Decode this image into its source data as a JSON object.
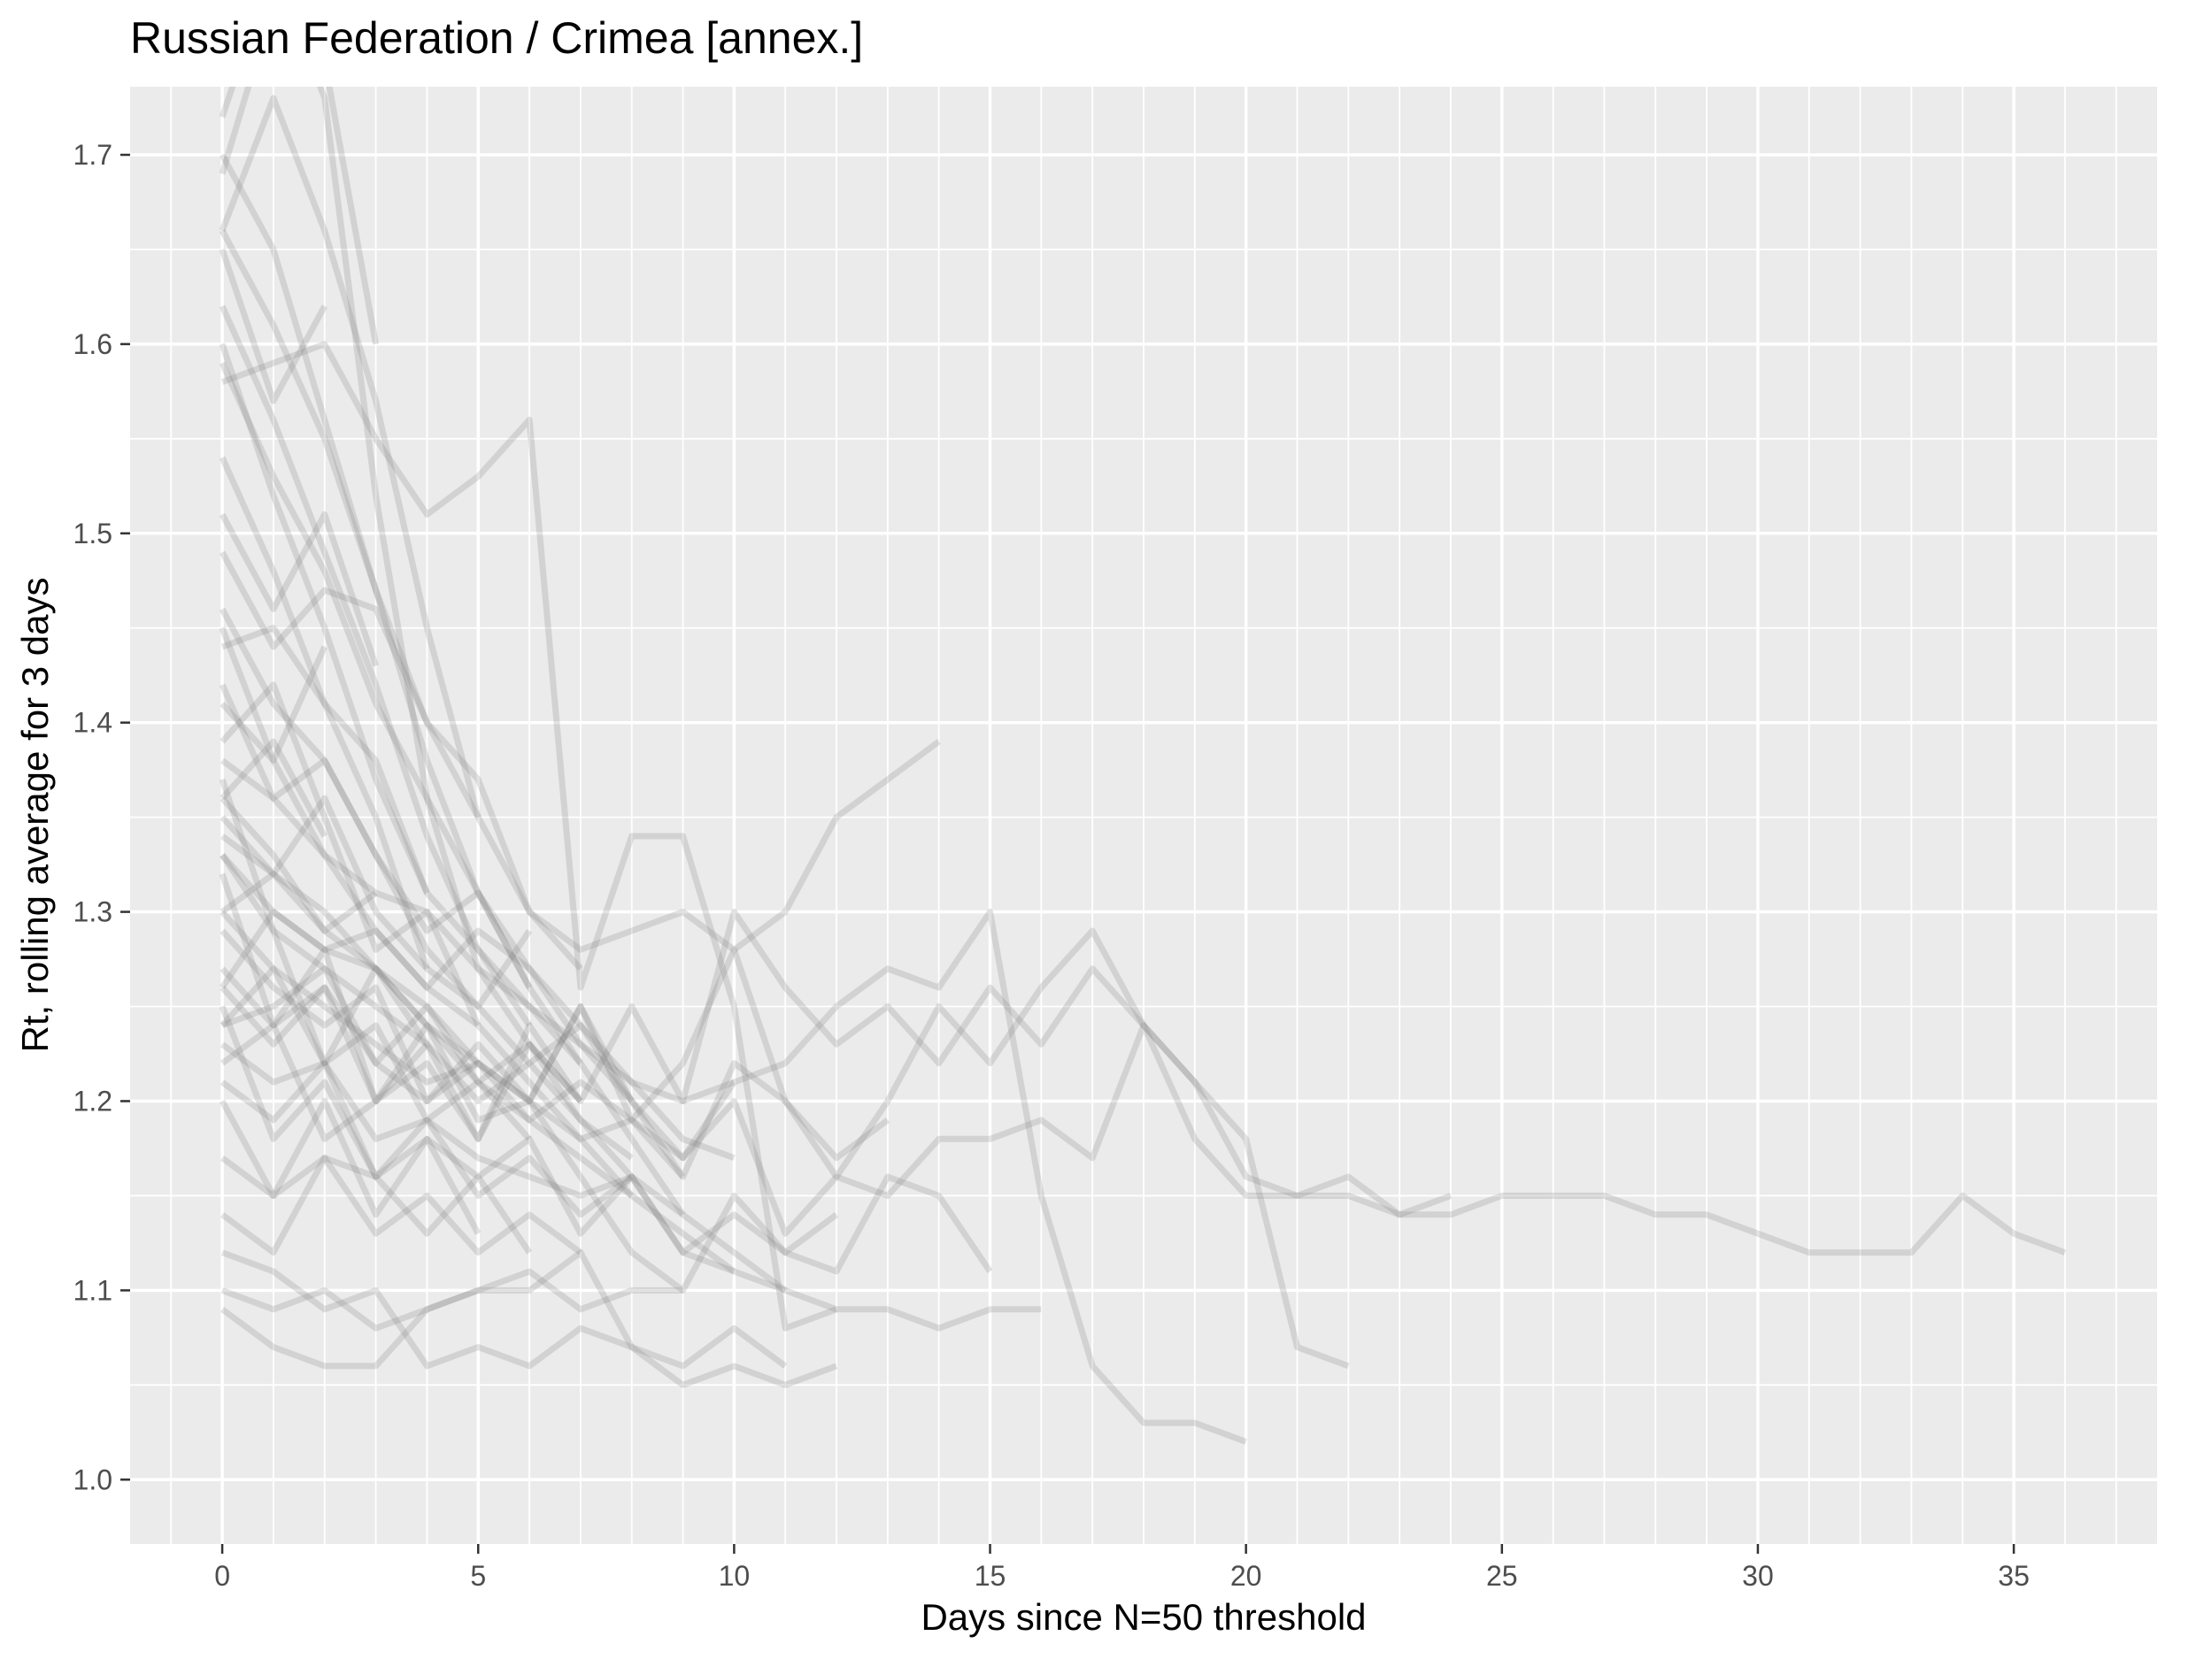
{
  "chart_data": {
    "type": "line",
    "title": "Russian Federation / Crimea [annex.]",
    "xlabel": "Days since N=50 threshold",
    "ylabel": "Rt, rolling average for 3 days",
    "xlim": [
      -1.8,
      37.8
    ],
    "ylim": [
      0.966,
      1.736
    ],
    "x_ticks": [
      0,
      5,
      10,
      15,
      20,
      25,
      30,
      35
    ],
    "x_tick_labels": [
      "0",
      "5",
      "10",
      "15",
      "20",
      "25",
      "30",
      "35"
    ],
    "y_ticks": [
      1.0,
      1.1,
      1.2,
      1.3,
      1.4,
      1.5,
      1.6,
      1.7
    ],
    "y_tick_labels": [
      "1.0",
      "1.1",
      "1.2",
      "1.3",
      "1.4",
      "1.5",
      "1.6",
      "1.7"
    ],
    "grid": true,
    "legend": "none",
    "colors": {
      "panel": "#ebebeb",
      "grid": "#ffffff",
      "line": "#7a7a7a"
    },
    "series": [
      {
        "x": [
          0,
          1,
          2,
          3,
          4,
          5,
          6,
          7,
          8,
          9,
          10,
          11,
          12,
          13,
          14,
          15,
          16,
          17,
          18,
          19,
          20,
          21,
          22,
          23,
          24,
          25,
          26,
          27,
          28,
          29,
          30,
          31,
          32,
          33,
          34,
          35,
          36
        ],
        "y": [
          1.37,
          1.29,
          1.22,
          1.27,
          1.23,
          1.18,
          1.24,
          1.2,
          1.25,
          1.2,
          1.3,
          1.26,
          1.23,
          1.25,
          1.22,
          1.26,
          1.23,
          1.27,
          1.24,
          1.21,
          1.16,
          1.15,
          1.16,
          1.14,
          1.14,
          1.15,
          1.15,
          1.15,
          1.14,
          1.14,
          1.13,
          1.12,
          1.12,
          1.12,
          1.15,
          1.13,
          1.12
        ]
      },
      {
        "x": [
          0,
          1,
          2,
          3,
          4,
          5,
          6,
          7,
          8,
          9,
          10,
          11,
          12,
          13,
          14,
          15,
          16,
          17,
          18,
          19,
          20,
          21,
          22
        ],
        "y": [
          1.24,
          1.25,
          1.27,
          1.22,
          1.2,
          1.23,
          1.2,
          1.25,
          1.2,
          1.16,
          1.22,
          1.2,
          1.16,
          1.2,
          1.25,
          1.22,
          1.26,
          1.29,
          1.24,
          1.21,
          1.18,
          1.07,
          1.06
        ]
      },
      {
        "x": [
          0,
          1,
          2,
          3,
          4,
          5,
          6,
          7,
          8,
          9,
          10,
          11,
          12,
          13,
          14,
          15,
          16,
          17,
          18,
          19,
          20
        ],
        "y": [
          1.33,
          1.29,
          1.27,
          1.25,
          1.23,
          1.2,
          1.22,
          1.24,
          1.2,
          1.17,
          1.21,
          1.22,
          1.25,
          1.27,
          1.26,
          1.3,
          1.15,
          1.06,
          1.03,
          1.03,
          1.02
        ]
      },
      {
        "x": [
          0,
          1,
          2,
          3,
          4,
          5,
          6,
          7,
          8,
          9,
          10,
          11,
          12,
          13,
          14,
          15,
          16,
          17,
          18,
          19,
          20,
          21,
          22,
          23,
          24
        ],
        "y": [
          1.29,
          1.26,
          1.24,
          1.26,
          1.2,
          1.22,
          1.19,
          1.21,
          1.19,
          1.17,
          1.2,
          1.13,
          1.16,
          1.15,
          1.18,
          1.18,
          1.19,
          1.17,
          1.24,
          1.18,
          1.15,
          1.15,
          1.15,
          1.14,
          1.15
        ]
      },
      {
        "x": [
          0,
          1,
          2,
          3,
          4,
          5,
          6,
          7,
          8,
          9,
          10,
          11,
          12,
          13,
          14
        ],
        "y": [
          1.22,
          1.24,
          1.18,
          1.2,
          1.24,
          1.19,
          1.2,
          1.25,
          1.19,
          1.22,
          1.28,
          1.3,
          1.35,
          1.37,
          1.39
        ]
      },
      {
        "x": [
          0,
          1,
          2,
          3,
          4,
          5,
          6,
          7,
          8,
          9,
          10,
          11,
          12,
          13,
          14,
          15,
          16
        ],
        "y": [
          1.45,
          1.38,
          1.33,
          1.29,
          1.26,
          1.24,
          1.21,
          1.18,
          1.15,
          1.13,
          1.11,
          1.1,
          1.09,
          1.09,
          1.08,
          1.09,
          1.09
        ]
      },
      {
        "x": [
          0,
          1,
          2,
          3,
          4,
          5,
          6,
          7,
          8,
          9,
          10,
          11,
          12,
          13,
          14,
          15
        ],
        "y": [
          1.17,
          1.15,
          1.2,
          1.14,
          1.18,
          1.16,
          1.18,
          1.13,
          1.16,
          1.12,
          1.14,
          1.12,
          1.11,
          1.16,
          1.15,
          1.11
        ]
      },
      {
        "x": [
          0,
          1,
          2,
          3,
          4,
          5,
          6,
          7,
          8,
          9,
          10,
          11,
          12,
          13
        ],
        "y": [
          1.66,
          1.61,
          1.55,
          1.47,
          1.4,
          1.35,
          1.3,
          1.28,
          1.29,
          1.3,
          1.28,
          1.2,
          1.17,
          1.19
        ]
      },
      {
        "x": [
          0,
          1,
          2,
          3,
          4,
          5,
          6,
          7,
          8,
          9,
          10,
          11,
          12
        ],
        "y": [
          1.09,
          1.07,
          1.06,
          1.06,
          1.09,
          1.1,
          1.1,
          1.12,
          1.07,
          1.05,
          1.06,
          1.05,
          1.06
        ]
      },
      {
        "x": [
          0,
          1,
          2,
          3,
          4,
          5,
          6,
          7,
          8,
          9,
          10,
          11,
          12
        ],
        "y": [
          1.58,
          1.59,
          1.6,
          1.55,
          1.51,
          1.53,
          1.56,
          1.26,
          1.34,
          1.34,
          1.25,
          1.08,
          1.09
        ]
      },
      {
        "x": [
          0,
          1,
          2,
          3,
          4,
          5,
          6,
          7,
          8,
          9,
          10,
          11,
          12
        ],
        "y": [
          1.34,
          1.32,
          1.3,
          1.27,
          1.25,
          1.22,
          1.2,
          1.16,
          1.12,
          1.1,
          1.15,
          1.12,
          1.14
        ]
      },
      {
        "x": [
          0,
          1,
          2,
          3,
          4,
          5,
          6,
          7,
          8,
          9,
          10,
          11
        ],
        "y": [
          1.46,
          1.41,
          1.38,
          1.33,
          1.28,
          1.25,
          1.22,
          1.19,
          1.16,
          1.14,
          1.12,
          1.1
        ]
      },
      {
        "x": [
          0,
          1,
          2,
          3,
          4,
          5,
          6,
          7,
          8,
          9,
          10,
          11
        ],
        "y": [
          1.12,
          1.11,
          1.09,
          1.1,
          1.06,
          1.07,
          1.06,
          1.08,
          1.07,
          1.06,
          1.08,
          1.06
        ]
      },
      {
        "x": [
          0,
          1,
          2,
          3,
          4,
          5,
          6,
          7,
          8,
          9,
          10
        ],
        "y": [
          1.26,
          1.3,
          1.28,
          1.29,
          1.26,
          1.29,
          1.27,
          1.24,
          1.21,
          1.2,
          1.21
        ]
      },
      {
        "x": [
          0,
          1,
          2,
          3,
          4,
          5,
          6,
          7,
          8,
          9,
          10
        ],
        "y": [
          1.38,
          1.36,
          1.33,
          1.31,
          1.3,
          1.27,
          1.25,
          1.23,
          1.21,
          1.18,
          1.17
        ]
      },
      {
        "x": [
          0,
          1,
          2,
          3,
          4,
          5,
          6,
          7,
          8,
          9,
          10
        ],
        "y": [
          1.23,
          1.21,
          1.22,
          1.18,
          1.19,
          1.17,
          1.16,
          1.15,
          1.16,
          1.12,
          1.11
        ]
      },
      {
        "x": [
          0,
          1,
          2,
          3,
          4,
          5,
          6,
          7,
          8,
          9
        ],
        "y": [
          1.7,
          1.65,
          1.56,
          1.47,
          1.38,
          1.31,
          1.26,
          1.22,
          1.18,
          1.14
        ]
      },
      {
        "x": [
          0,
          1,
          2,
          3,
          4,
          5,
          6,
          7,
          8,
          9
        ],
        "y": [
          1.3,
          1.27,
          1.25,
          1.23,
          1.21,
          1.22,
          1.2,
          1.18,
          1.19,
          1.16
        ]
      },
      {
        "x": [
          0,
          1,
          2,
          3,
          4,
          5,
          6,
          7,
          8,
          9
        ],
        "y": [
          1.1,
          1.09,
          1.1,
          1.08,
          1.09,
          1.1,
          1.11,
          1.09,
          1.1,
          1.1
        ]
      },
      {
        "x": [
          0,
          1,
          2,
          3,
          4,
          5,
          6,
          7,
          8
        ],
        "y": [
          1.36,
          1.33,
          1.29,
          1.27,
          1.24,
          1.21,
          1.19,
          1.17,
          1.15
        ]
      },
      {
        "x": [
          0,
          1,
          2,
          3,
          4,
          5,
          6,
          7,
          8
        ],
        "y": [
          1.32,
          1.24,
          1.28,
          1.2,
          1.22,
          1.18,
          1.23,
          1.19,
          1.17
        ]
      },
      {
        "x": [
          0,
          1,
          2,
          3,
          4,
          5,
          6,
          7,
          8
        ],
        "y": [
          1.59,
          1.53,
          1.48,
          1.41,
          1.36,
          1.31,
          1.27,
          1.23,
          1.2
        ]
      },
      {
        "x": [
          0,
          1,
          2,
          3,
          4,
          5,
          6,
          7,
          8
        ],
        "y": [
          1.25,
          1.18,
          1.21,
          1.16,
          1.19,
          1.15,
          1.17,
          1.14,
          1.16
        ]
      },
      {
        "x": [
          0,
          1,
          2,
          3,
          4,
          5,
          6,
          7
        ],
        "y": [
          1.72,
          1.8,
          1.73,
          1.52,
          1.36,
          1.27,
          1.23,
          1.2
        ]
      },
      {
        "x": [
          0,
          1,
          2,
          3,
          4,
          5,
          6,
          7
        ],
        "y": [
          1.54,
          1.48,
          1.41,
          1.38,
          1.31,
          1.28,
          1.25,
          1.22
        ]
      },
      {
        "x": [
          0,
          1,
          2,
          3,
          4,
          5,
          6,
          7
        ],
        "y": [
          1.2,
          1.15,
          1.17,
          1.13,
          1.15,
          1.12,
          1.14,
          1.12
        ]
      },
      {
        "x": [
          0,
          1,
          2,
          3,
          4,
          5,
          6,
          7
        ],
        "y": [
          1.49,
          1.44,
          1.47,
          1.46,
          1.4,
          1.37,
          1.3,
          1.27
        ]
      },
      {
        "x": [
          0,
          1,
          2,
          3,
          4,
          5,
          6,
          7
        ],
        "y": [
          1.27,
          1.24,
          1.26,
          1.22,
          1.25,
          1.21,
          1.23,
          1.2
        ]
      },
      {
        "x": [
          0,
          1,
          2,
          3,
          4,
          5,
          6
        ],
        "y": [
          1.62,
          1.56,
          1.49,
          1.42,
          1.34,
          1.28,
          1.24
        ]
      },
      {
        "x": [
          0,
          1,
          2,
          3,
          4,
          5,
          6
        ],
        "y": [
          1.14,
          1.12,
          1.17,
          1.16,
          1.13,
          1.16,
          1.12
        ]
      },
      {
        "x": [
          0,
          1,
          2,
          3,
          4,
          5,
          6
        ],
        "y": [
          1.42,
          1.36,
          1.38,
          1.33,
          1.29,
          1.31,
          1.26
        ]
      },
      {
        "x": [
          0,
          1,
          2,
          3,
          4,
          5,
          6
        ],
        "y": [
          1.24,
          1.27,
          1.22,
          1.24,
          1.19,
          1.21,
          1.18
        ]
      },
      {
        "x": [
          0,
          1,
          2,
          3,
          4,
          5,
          6
        ],
        "y": [
          1.35,
          1.32,
          1.36,
          1.3,
          1.27,
          1.25,
          1.29
        ]
      },
      {
        "x": [
          0,
          1,
          2,
          3,
          4,
          5
        ],
        "y": [
          1.66,
          1.73,
          1.66,
          1.57,
          1.45,
          1.35
        ]
      },
      {
        "x": [
          0,
          1,
          2,
          3,
          4,
          5
        ],
        "y": [
          1.39,
          1.42,
          1.35,
          1.28,
          1.3,
          1.24
        ]
      },
      {
        "x": [
          0,
          1,
          2,
          3,
          4,
          5
        ],
        "y": [
          1.21,
          1.19,
          1.22,
          1.16,
          1.18,
          1.13
        ]
      },
      {
        "x": [
          0,
          1,
          2,
          3,
          4,
          5
        ],
        "y": [
          1.33,
          1.3,
          1.28,
          1.27,
          1.24,
          1.22
        ]
      },
      {
        "x": [
          0,
          1,
          2,
          3,
          4
        ],
        "y": [
          1.6,
          1.52,
          1.45,
          1.37,
          1.31
        ]
      },
      {
        "x": [
          0,
          1,
          2,
          3,
          4
        ],
        "y": [
          1.44,
          1.45,
          1.41,
          1.35,
          1.27
        ]
      },
      {
        "x": [
          0,
          1,
          2,
          3,
          4
        ],
        "y": [
          1.26,
          1.23,
          1.26,
          1.2,
          1.23
        ]
      },
      {
        "x": [
          0,
          1,
          2,
          3
        ],
        "y": [
          1.69,
          1.78,
          1.75,
          1.6
        ]
      },
      {
        "x": [
          0,
          1,
          2,
          3
        ],
        "y": [
          1.51,
          1.46,
          1.51,
          1.43
        ]
      },
      {
        "x": [
          0,
          1,
          2,
          3
        ],
        "y": [
          1.3,
          1.32,
          1.29,
          1.31
        ]
      },
      {
        "x": [
          0,
          1,
          2
        ],
        "y": [
          1.65,
          1.57,
          1.62
        ]
      },
      {
        "x": [
          0,
          1,
          2
        ],
        "y": [
          1.41,
          1.38,
          1.44
        ]
      },
      {
        "x": [
          0,
          1,
          2
        ],
        "y": [
          1.36,
          1.39,
          1.34
        ]
      }
    ]
  }
}
